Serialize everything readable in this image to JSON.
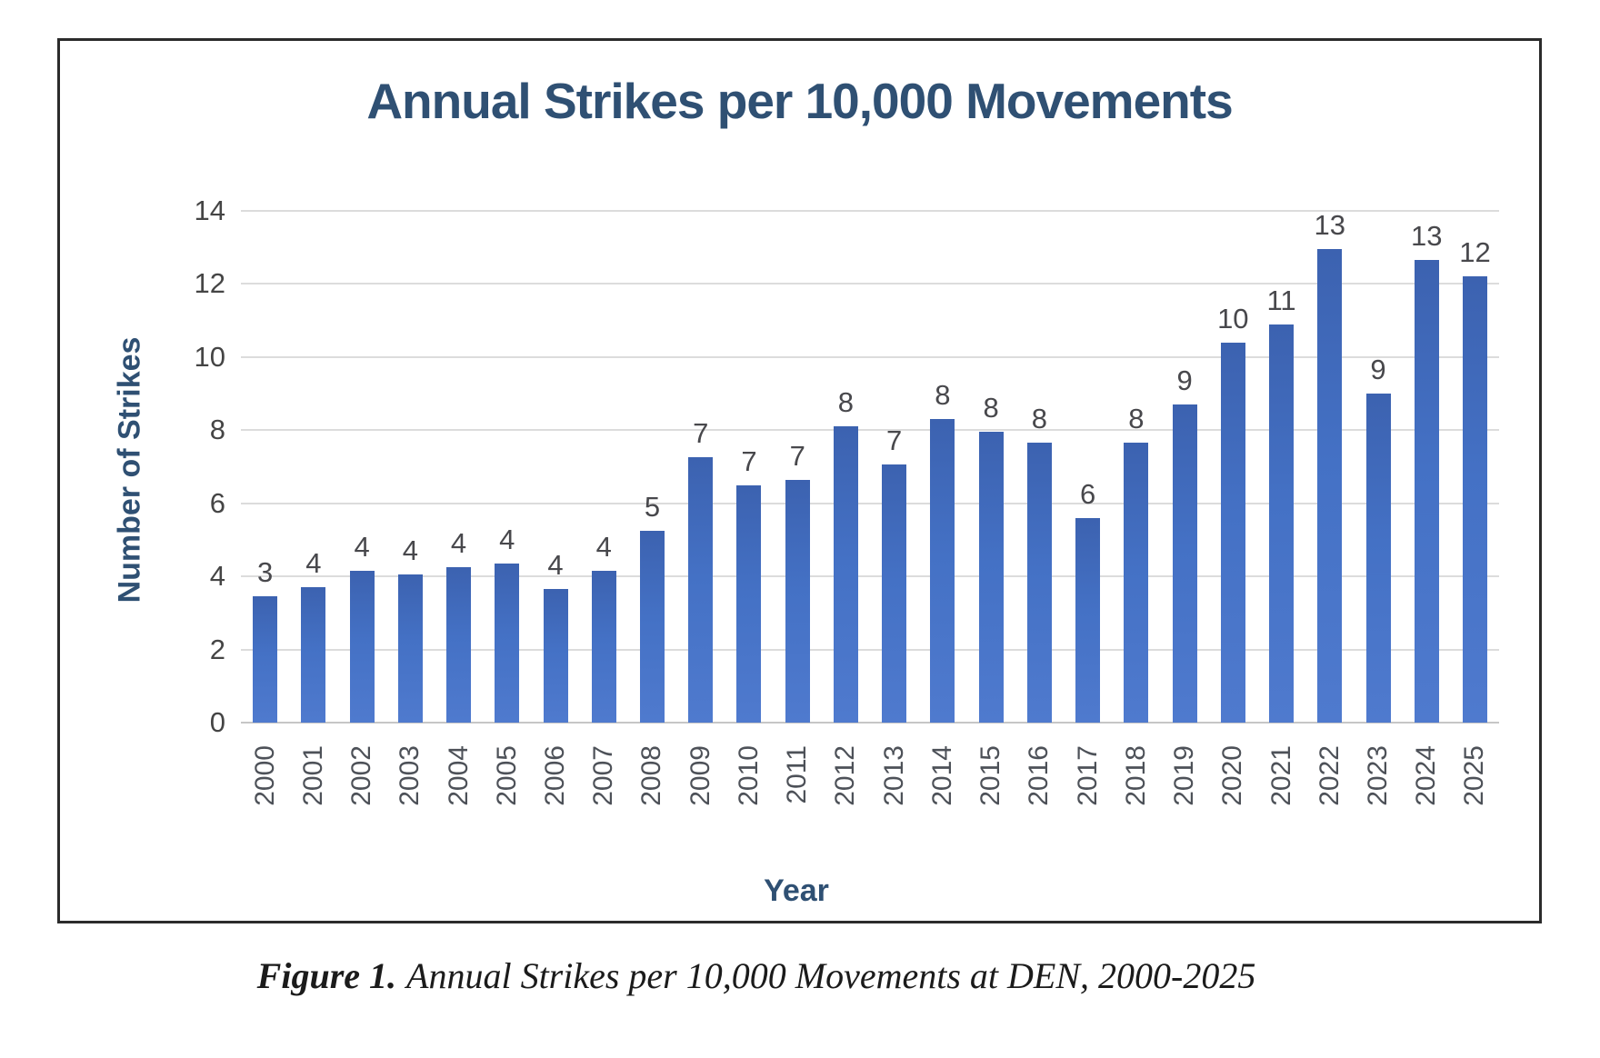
{
  "page": {
    "caption": {
      "label": "Figure 1.",
      "text": "Annual Strikes per 10,000 Movements at DEN, 2000-2025"
    }
  },
  "chart_data": {
    "type": "bar",
    "title": "Annual Strikes per 10,000 Movements",
    "xlabel": "Year",
    "ylabel": "Number of Strikes",
    "ylim": [
      0,
      14
    ],
    "yticks": [
      0,
      2,
      4,
      6,
      8,
      10,
      12,
      14
    ],
    "grid": true,
    "legend": false,
    "categories": [
      "2000",
      "2001",
      "2002",
      "2003",
      "2004",
      "2005",
      "2006",
      "2007",
      "2008",
      "2009",
      "2010",
      "2011",
      "2012",
      "2013",
      "2014",
      "2015",
      "2016",
      "2017",
      "2018",
      "2019",
      "2020",
      "2021",
      "2022",
      "2023",
      "2024",
      "2025"
    ],
    "values": [
      3.45,
      3.7,
      4.15,
      4.05,
      4.25,
      4.35,
      3.65,
      4.15,
      5.25,
      7.25,
      6.5,
      6.65,
      8.1,
      7.05,
      8.3,
      7.95,
      7.65,
      5.6,
      7.65,
      8.7,
      10.4,
      10.9,
      13.0,
      9.0,
      12.65,
      12.2
    ],
    "data_labels": [
      3,
      4,
      4,
      4,
      4,
      4,
      4,
      4,
      5,
      7,
      7,
      7,
      8,
      7,
      8,
      8,
      8,
      6,
      8,
      9,
      10,
      11,
      13,
      9,
      13,
      12
    ],
    "colors": {
      "bar_top": "#3c62b0",
      "bar_mid": "#4471c5",
      "bar_bottom": "#4f7ace",
      "title": "#2f5073",
      "axis_title": "#2f5073",
      "tick_label": "#454545",
      "data_label": "#48484c",
      "gridline": "#dcdcdc",
      "axis_line": "#c6c6c6",
      "border": "#2b2b2b"
    }
  }
}
